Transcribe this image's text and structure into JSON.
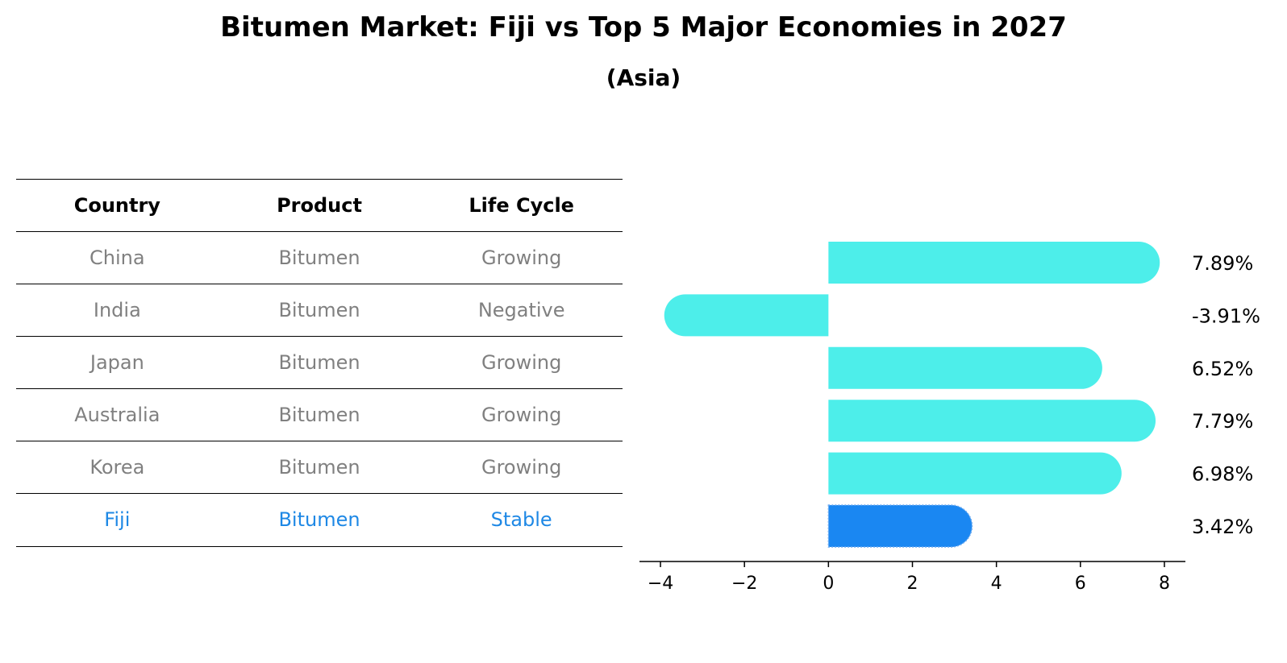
{
  "title": "Bitumen Market: Fiji vs Top 5 Major Economies in 2027",
  "subtitle": "(Asia)",
  "table": {
    "headers": [
      "Country",
      "Product",
      "Life Cycle"
    ],
    "rows": [
      [
        "China",
        "Bitumen",
        "Growing"
      ],
      [
        "India",
        "Bitumen",
        "Negative"
      ],
      [
        "Japan",
        "Bitumen",
        "Growing"
      ],
      [
        "Australia",
        "Bitumen",
        "Growing"
      ],
      [
        "Korea",
        "Bitumen",
        "Growing"
      ],
      [
        "Fiji",
        "Bitumen",
        "Stable"
      ]
    ],
    "highlight_row": 5
  },
  "colors": {
    "bar": "#4deeea",
    "highlight_bar": "#1a87f2",
    "muted_text": "#808080",
    "highlight_text": "#1e88e5"
  },
  "chart_data": {
    "type": "bar",
    "orientation": "horizontal",
    "categories": [
      "China",
      "India",
      "Japan",
      "Australia",
      "Korea",
      "Fiji"
    ],
    "values": [
      7.89,
      -3.91,
      6.52,
      7.79,
      6.98,
      3.42
    ],
    "labels": [
      "7.89%",
      "-3.91%",
      "6.52%",
      "7.79%",
      "6.98%",
      "3.42%"
    ],
    "xlim": [
      -4.5,
      8.5
    ],
    "xticks": [
      -4,
      -2,
      0,
      2,
      4,
      6,
      8
    ],
    "xtick_labels": [
      "−4",
      "−2",
      "0",
      "2",
      "4",
      "6",
      "8"
    ],
    "highlight_index": 5,
    "grid": false,
    "legend": "none"
  }
}
